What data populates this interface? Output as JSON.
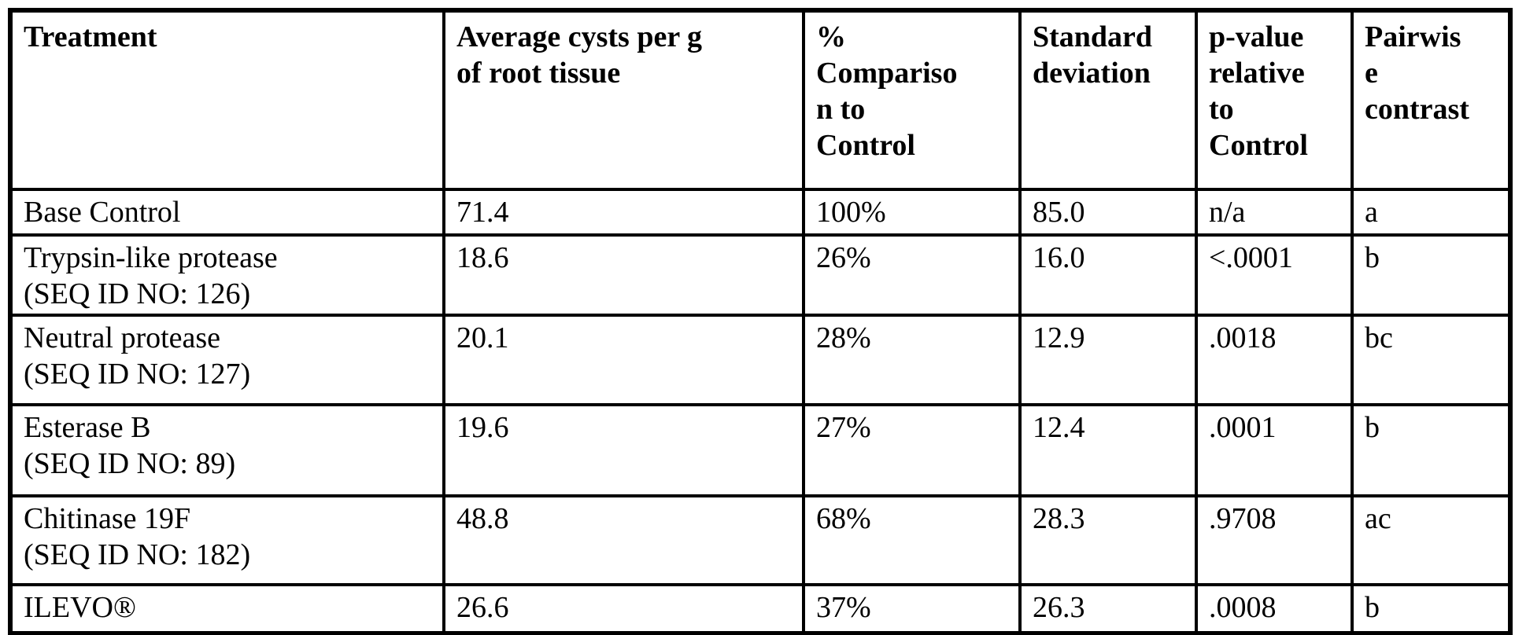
{
  "colors": {
    "text": "#000000",
    "background": "#ffffff",
    "border": "#000000"
  },
  "table": {
    "headers": [
      "Treatment",
      "Average cysts per g\nof root tissue",
      "%\nCompariso\nn to\nControl",
      "Standard\ndeviation",
      "p-value\nrelative\nto\nControl",
      "Pairwis\ne\ncontrast"
    ],
    "rows": [
      {
        "treatment": "Base Control",
        "avg_cysts": "71.4",
        "pct_comparison": "100%",
        "std_dev": "85.0",
        "p_value": "n/a",
        "pairwise_contrast": "a"
      },
      {
        "treatment": "Trypsin-like protease\n(SEQ ID NO: 126)",
        "avg_cysts": "18.6",
        "pct_comparison": "26%",
        "std_dev": "16.0",
        "p_value": "<.0001",
        "pairwise_contrast": "b"
      },
      {
        "treatment": "Neutral protease\n(SEQ ID NO: 127)",
        "avg_cysts": "20.1",
        "pct_comparison": "28%",
        "std_dev": "12.9",
        "p_value": ".0018",
        "pairwise_contrast": "bc"
      },
      {
        "treatment": "Esterase B\n(SEQ ID NO: 89)",
        "avg_cysts": "19.6",
        "pct_comparison": "27%",
        "std_dev": "12.4",
        "p_value": ".0001",
        "pairwise_contrast": "b"
      },
      {
        "treatment": "Chitinase 19F\n(SEQ ID NO: 182)",
        "avg_cysts": "48.8",
        "pct_comparison": "68%",
        "std_dev": "28.3",
        "p_value": ".9708",
        "pairwise_contrast": "ac"
      },
      {
        "treatment": "ILEVO®",
        "avg_cysts": "26.6",
        "pct_comparison": "37%",
        "std_dev": "26.3",
        "p_value": ".0008",
        "pairwise_contrast": "b"
      }
    ]
  }
}
